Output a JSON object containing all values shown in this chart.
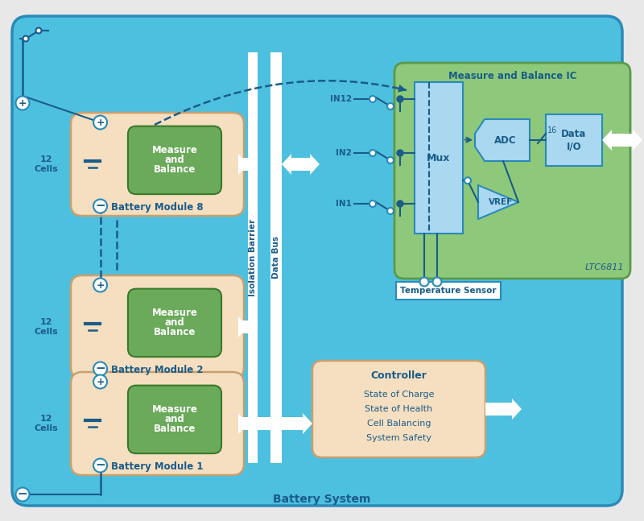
{
  "bg_outer": "#e8e8e8",
  "bg_main": "#4ec0df",
  "bg_battery_module": "#f5dfc0",
  "bg_measure_balance_green": "#6aaa5a",
  "bg_ic_green": "#8ec87a",
  "bg_light_blue": "#aad8f0",
  "bg_controller": "#f5dfc0",
  "text_blue": "#1a5c8a",
  "border_blue": "#2a8ab8",
  "white": "#ffffff",
  "dashed_color": "#1a5c8a",
  "battery_system_label": "Battery System",
  "ltc_label": "LTC6811",
  "ic_title": "Measure and Balance IC",
  "temp_sensor_label": "Temperature Sensor"
}
